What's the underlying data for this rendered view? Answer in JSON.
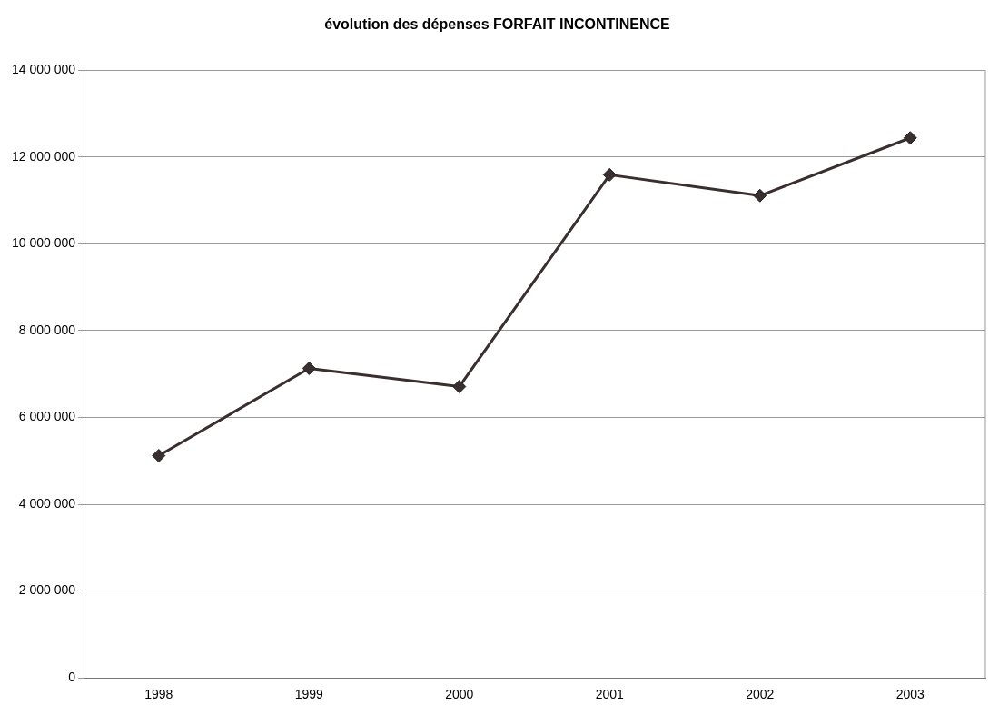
{
  "chart_data": {
    "type": "line",
    "title": "évolution des dépenses FORFAIT INCONTINENCE",
    "categories": [
      "1998",
      "1999",
      "2000",
      "2001",
      "2002",
      "2003"
    ],
    "series": [
      {
        "color": "#3a2f2f",
        "values": [
          5120000,
          7130000,
          6710000,
          11590000,
          11110000,
          12440000
        ]
      }
    ],
    "ylim": [
      0,
      14000000
    ],
    "yticks": [
      {
        "value": 0,
        "label": "0"
      },
      {
        "value": 2000000,
        "label": "2 000 000"
      },
      {
        "value": 4000000,
        "label": "4 000 000"
      },
      {
        "value": 6000000,
        "label": "6 000 000"
      },
      {
        "value": 8000000,
        "label": "8 000 000"
      },
      {
        "value": 10000000,
        "label": "10 000 000"
      },
      {
        "value": 12000000,
        "label": "12 000 000"
      },
      {
        "value": 14000000,
        "label": "14 000 000"
      }
    ],
    "grid": "y",
    "legend": false,
    "marker": "diamond",
    "line_style": "solid"
  }
}
